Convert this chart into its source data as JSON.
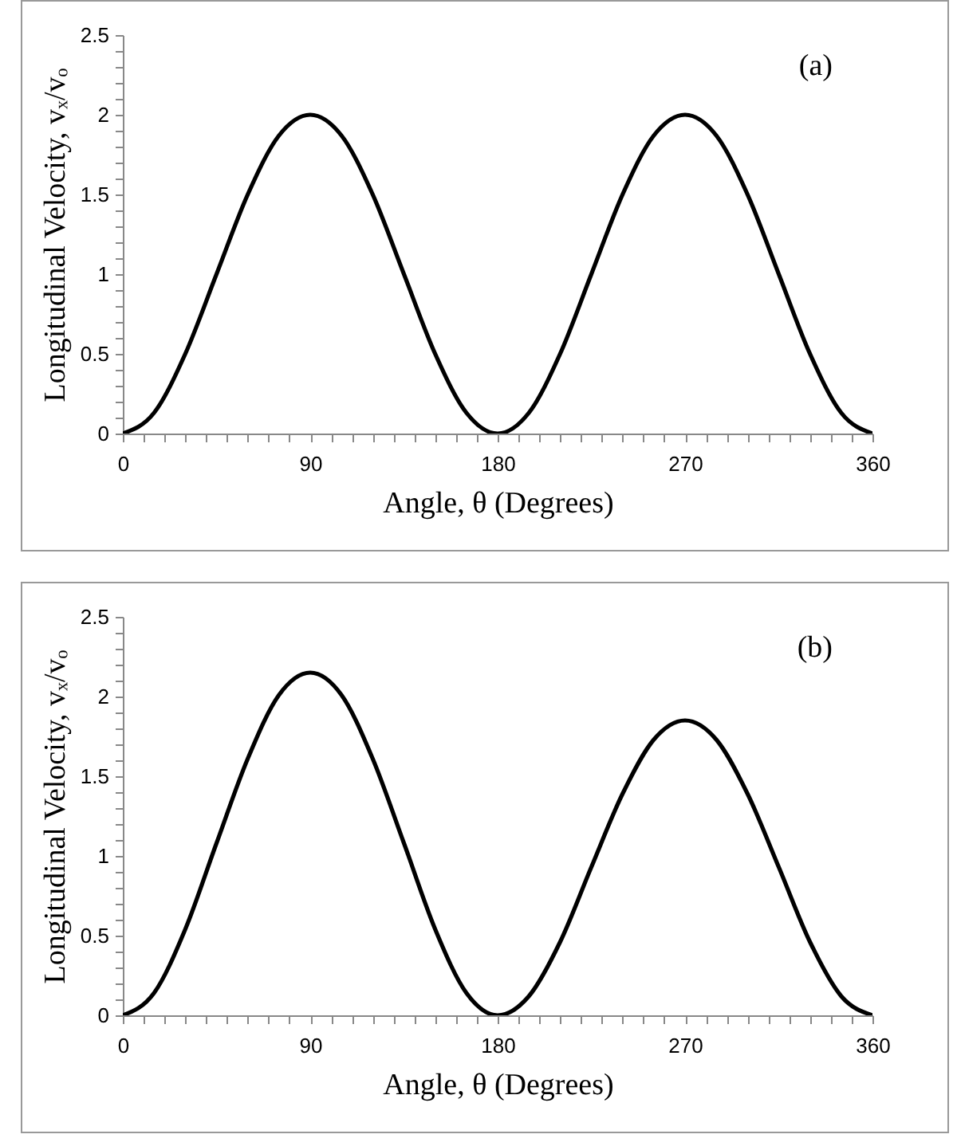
{
  "chart_data": [
    {
      "type": "line",
      "xlabel": "Angle, θ (Degrees)",
      "ylabel": "Longitudinal Velocity, vₓ/vₒ",
      "annotations": [
        "(a)"
      ],
      "x": [
        0,
        15,
        30,
        45,
        60,
        75,
        90,
        105,
        120,
        135,
        150,
        165,
        180,
        195,
        210,
        225,
        240,
        255,
        270,
        285,
        300,
        315,
        330,
        345,
        360
      ],
      "series": [
        {
          "color": "#000000",
          "values": [
            0,
            0.13,
            0.5,
            1,
            1.5,
            1.87,
            2,
            1.87,
            1.5,
            1,
            0.5,
            0.13,
            0,
            0.13,
            0.5,
            1,
            1.5,
            1.87,
            2,
            1.87,
            1.5,
            1,
            0.5,
            0.13,
            0
          ]
        }
      ],
      "xlim": [
        0,
        360
      ],
      "ylim": [
        0,
        2.5
      ],
      "xticks": [
        0,
        {
          "value": 10,
          "label": null
        },
        {
          "value": 20,
          "label": null
        },
        {
          "value": 30,
          "label": null
        },
        {
          "value": 40,
          "label": null
        },
        {
          "value": 50,
          "label": null
        },
        {
          "value": 60,
          "label": null
        },
        {
          "value": 70,
          "label": null
        },
        {
          "value": 80,
          "label": null
        },
        90,
        {
          "value": 100,
          "label": null
        },
        {
          "value": 110,
          "label": null
        },
        {
          "value": 120,
          "label": null
        },
        {
          "value": 130,
          "label": null
        },
        {
          "value": 140,
          "label": null
        },
        {
          "value": 150,
          "label": null
        },
        {
          "value": 160,
          "label": null
        },
        {
          "value": 170,
          "label": null
        },
        180,
        {
          "value": 190,
          "label": null
        },
        {
          "value": 200,
          "label": null
        },
        {
          "value": 210,
          "label": null
        },
        {
          "value": 220,
          "label": null
        },
        {
          "value": 230,
          "label": null
        },
        {
          "value": 240,
          "label": null
        },
        {
          "value": 250,
          "label": null
        },
        {
          "value": 260,
          "label": null
        },
        270,
        {
          "value": 280,
          "label": null
        },
        {
          "value": 290,
          "label": null
        },
        {
          "value": 300,
          "label": null
        },
        {
          "value": 310,
          "label": null
        },
        {
          "value": 320,
          "label": null
        },
        {
          "value": 330,
          "label": null
        },
        {
          "value": 340,
          "label": null
        },
        {
          "value": 350,
          "label": null
        },
        360
      ],
      "yticks": [
        0,
        {
          "value": 0.1,
          "label": null
        },
        {
          "value": 0.2,
          "label": null
        },
        {
          "value": 0.3,
          "label": null
        },
        {
          "value": 0.4,
          "label": null
        },
        0.5,
        {
          "value": 0.6,
          "label": null
        },
        {
          "value": 0.7,
          "label": null
        },
        {
          "value": 0.8,
          "label": null
        },
        {
          "value": 0.9,
          "label": null
        },
        1,
        {
          "value": 1.1,
          "label": null
        },
        {
          "value": 1.2,
          "label": null
        },
        {
          "value": 1.3,
          "label": null
        },
        {
          "value": 1.4,
          "label": null
        },
        1.5,
        {
          "value": 1.6,
          "label": null
        },
        {
          "value": 1.7,
          "label": null
        },
        {
          "value": 1.8,
          "label": null
        },
        {
          "value": 1.9,
          "label": null
        },
        2,
        {
          "value": 2.1,
          "label": null
        },
        {
          "value": 2.2,
          "label": null
        },
        {
          "value": 2.3,
          "label": null
        },
        {
          "value": 2.4,
          "label": null
        },
        2.5
      ],
      "grid": false
    },
    {
      "type": "line",
      "xlabel": "Angle, θ (Degrees)",
      "ylabel": "Longitudinal Velocity, vₓ/vₒ",
      "annotations": [
        "(b)"
      ],
      "x": [
        0,
        15,
        30,
        45,
        60,
        75,
        90,
        105,
        120,
        135,
        150,
        165,
        180,
        195,
        210,
        225,
        240,
        255,
        270,
        285,
        300,
        315,
        330,
        345,
        360
      ],
      "series": [
        {
          "color": "#000000",
          "values": [
            0,
            0.14,
            0.54,
            1.08,
            1.61,
            2.01,
            2.15,
            2.01,
            1.61,
            1.08,
            0.54,
            0.14,
            0,
            0.12,
            0.46,
            0.93,
            1.39,
            1.73,
            1.85,
            1.73,
            1.39,
            0.93,
            0.46,
            0.12,
            0
          ]
        }
      ],
      "xlim": [
        0,
        360
      ],
      "ylim": [
        0,
        2.5
      ],
      "xticks": [
        0,
        {
          "value": 10,
          "label": null
        },
        {
          "value": 20,
          "label": null
        },
        {
          "value": 30,
          "label": null
        },
        {
          "value": 40,
          "label": null
        },
        {
          "value": 50,
          "label": null
        },
        {
          "value": 60,
          "label": null
        },
        {
          "value": 70,
          "label": null
        },
        {
          "value": 80,
          "label": null
        },
        90,
        {
          "value": 100,
          "label": null
        },
        {
          "value": 110,
          "label": null
        },
        {
          "value": 120,
          "label": null
        },
        {
          "value": 130,
          "label": null
        },
        {
          "value": 140,
          "label": null
        },
        {
          "value": 150,
          "label": null
        },
        {
          "value": 160,
          "label": null
        },
        {
          "value": 170,
          "label": null
        },
        180,
        {
          "value": 190,
          "label": null
        },
        {
          "value": 200,
          "label": null
        },
        {
          "value": 210,
          "label": null
        },
        {
          "value": 220,
          "label": null
        },
        {
          "value": 230,
          "label": null
        },
        {
          "value": 240,
          "label": null
        },
        {
          "value": 250,
          "label": null
        },
        {
          "value": 260,
          "label": null
        },
        270,
        {
          "value": 280,
          "label": null
        },
        {
          "value": 290,
          "label": null
        },
        {
          "value": 300,
          "label": null
        },
        {
          "value": 310,
          "label": null
        },
        {
          "value": 320,
          "label": null
        },
        {
          "value": 330,
          "label": null
        },
        {
          "value": 340,
          "label": null
        },
        {
          "value": 350,
          "label": null
        },
        360
      ],
      "yticks": [
        0,
        {
          "value": 0.1,
          "label": null
        },
        {
          "value": 0.2,
          "label": null
        },
        {
          "value": 0.3,
          "label": null
        },
        {
          "value": 0.4,
          "label": null
        },
        0.5,
        {
          "value": 0.6,
          "label": null
        },
        {
          "value": 0.7,
          "label": null
        },
        {
          "value": 0.8,
          "label": null
        },
        {
          "value": 0.9,
          "label": null
        },
        1,
        {
          "value": 1.1,
          "label": null
        },
        {
          "value": 1.2,
          "label": null
        },
        {
          "value": 1.3,
          "label": null
        },
        {
          "value": 1.4,
          "label": null
        },
        1.5,
        {
          "value": 1.6,
          "label": null
        },
        {
          "value": 1.7,
          "label": null
        },
        {
          "value": 1.8,
          "label": null
        },
        {
          "value": 1.9,
          "label": null
        },
        2,
        {
          "value": 2.1,
          "label": null
        },
        {
          "value": 2.2,
          "label": null
        },
        {
          "value": 2.3,
          "label": null
        },
        {
          "value": 2.4,
          "label": null
        },
        2.5
      ],
      "grid": false
    }
  ]
}
